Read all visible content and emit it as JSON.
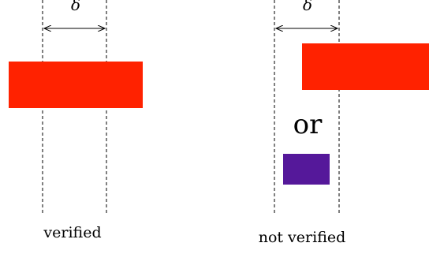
{
  "left_panel": {
    "delta_symbol": "δ",
    "caption": "verified",
    "bar_color": "#ff2200"
  },
  "right_panel": {
    "delta_symbol": "δ",
    "or_label": "or",
    "caption": "not verified",
    "red_bar_color": "#ff2200",
    "purple_bar_color": "#55189a"
  }
}
